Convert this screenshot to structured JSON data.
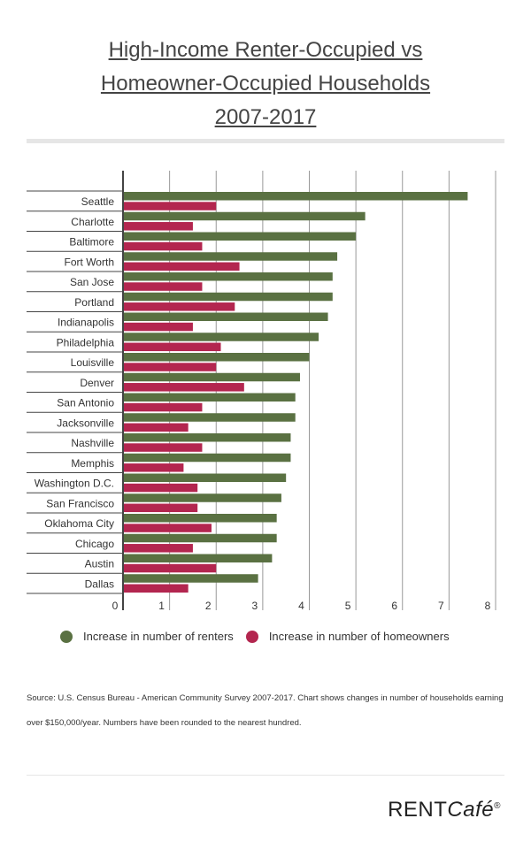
{
  "title_lines": [
    "High-Income Renter-Occupied vs",
    "Homeowner-Occupied Households ",
    "2007-2017"
  ],
  "source": "Source: U.S. Census Bureau - American Community Survey 2007-2017. Chart shows changes in number of households earning over $150,000/year. Numbers have been rounded to the nearest hundred.",
  "logo": {
    "main": "RENT",
    "cafe": "Café",
    "reg": "®"
  },
  "chart_data": {
    "type": "bar",
    "orientation": "horizontal",
    "title": "High-Income Renter-Occupied vs Homeowner-Occupied Households 2007-2017",
    "categories": [
      "Seattle",
      "Charlotte",
      "Baltimore",
      "Fort Worth",
      "San Jose",
      "Portland",
      "Indianapolis",
      "Philadelphia",
      "Louisville",
      "Denver",
      "San Antonio",
      "Jacksonville",
      "Nashville",
      "Memphis",
      "Washington D.C.",
      "San Francisco",
      "Oklahoma City",
      "Chicago",
      "Austin",
      "Dallas"
    ],
    "series": [
      {
        "name": "Increase in number of renters",
        "color": "#5a7142",
        "values": [
          7.4,
          5.2,
          5.0,
          4.6,
          4.5,
          4.5,
          4.4,
          4.2,
          4.0,
          3.8,
          3.7,
          3.7,
          3.6,
          3.6,
          3.5,
          3.4,
          3.3,
          3.3,
          3.2,
          2.9
        ]
      },
      {
        "name": "Increase in number of homeowners",
        "color": "#b3264f",
        "values": [
          2.0,
          1.5,
          1.7,
          2.5,
          1.7,
          2.4,
          1.5,
          2.1,
          2.0,
          2.6,
          1.7,
          1.4,
          1.7,
          1.3,
          1.6,
          1.6,
          1.9,
          1.5,
          2.0,
          1.4
        ]
      }
    ],
    "xlim": [
      0,
      8
    ],
    "xticks": [
      "0",
      "1",
      "2",
      "3",
      "4",
      "5",
      "6",
      "7",
      "8"
    ],
    "grid": true,
    "legend": "bottom"
  }
}
